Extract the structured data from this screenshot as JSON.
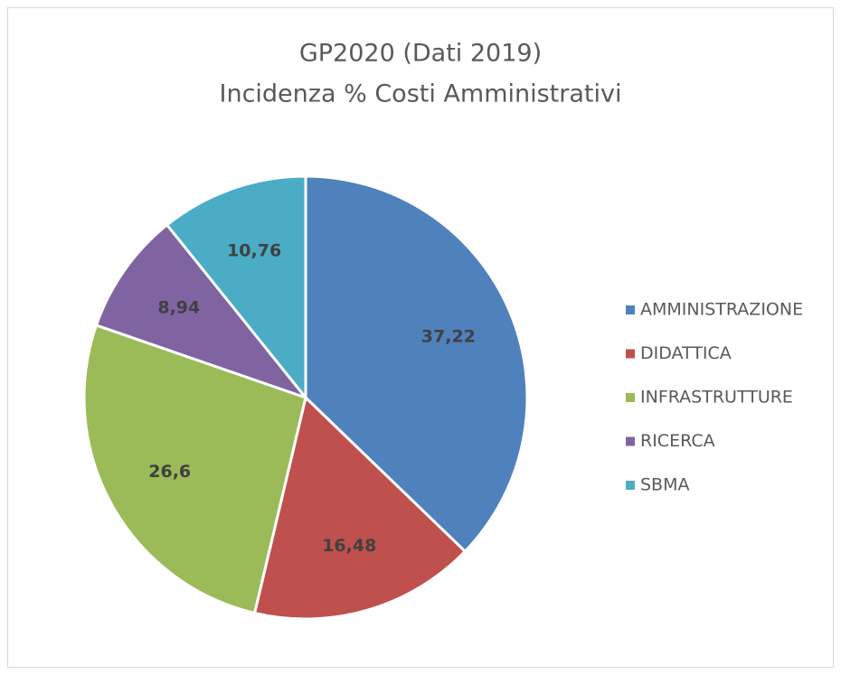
{
  "chart_data": {
    "type": "pie",
    "title": "GP2020 (Dati 2019)",
    "subtitle": "Incidenza % Costi Amministrativi",
    "categories": [
      "AMMINISTRAZIONE",
      "DIDATTICA",
      "INFRASTRUTTURE",
      "RICERCA",
      "SBMA"
    ],
    "values": [
      37.22,
      16.48,
      26.6,
      8.94,
      10.76
    ],
    "value_labels": [
      "37,22",
      "16,48",
      "26,6",
      "8,94",
      "10,76"
    ],
    "colors": [
      "#4f81bd",
      "#c0504d",
      "#9bbb59",
      "#8064a2",
      "#4bacc6"
    ],
    "legend": "right"
  }
}
